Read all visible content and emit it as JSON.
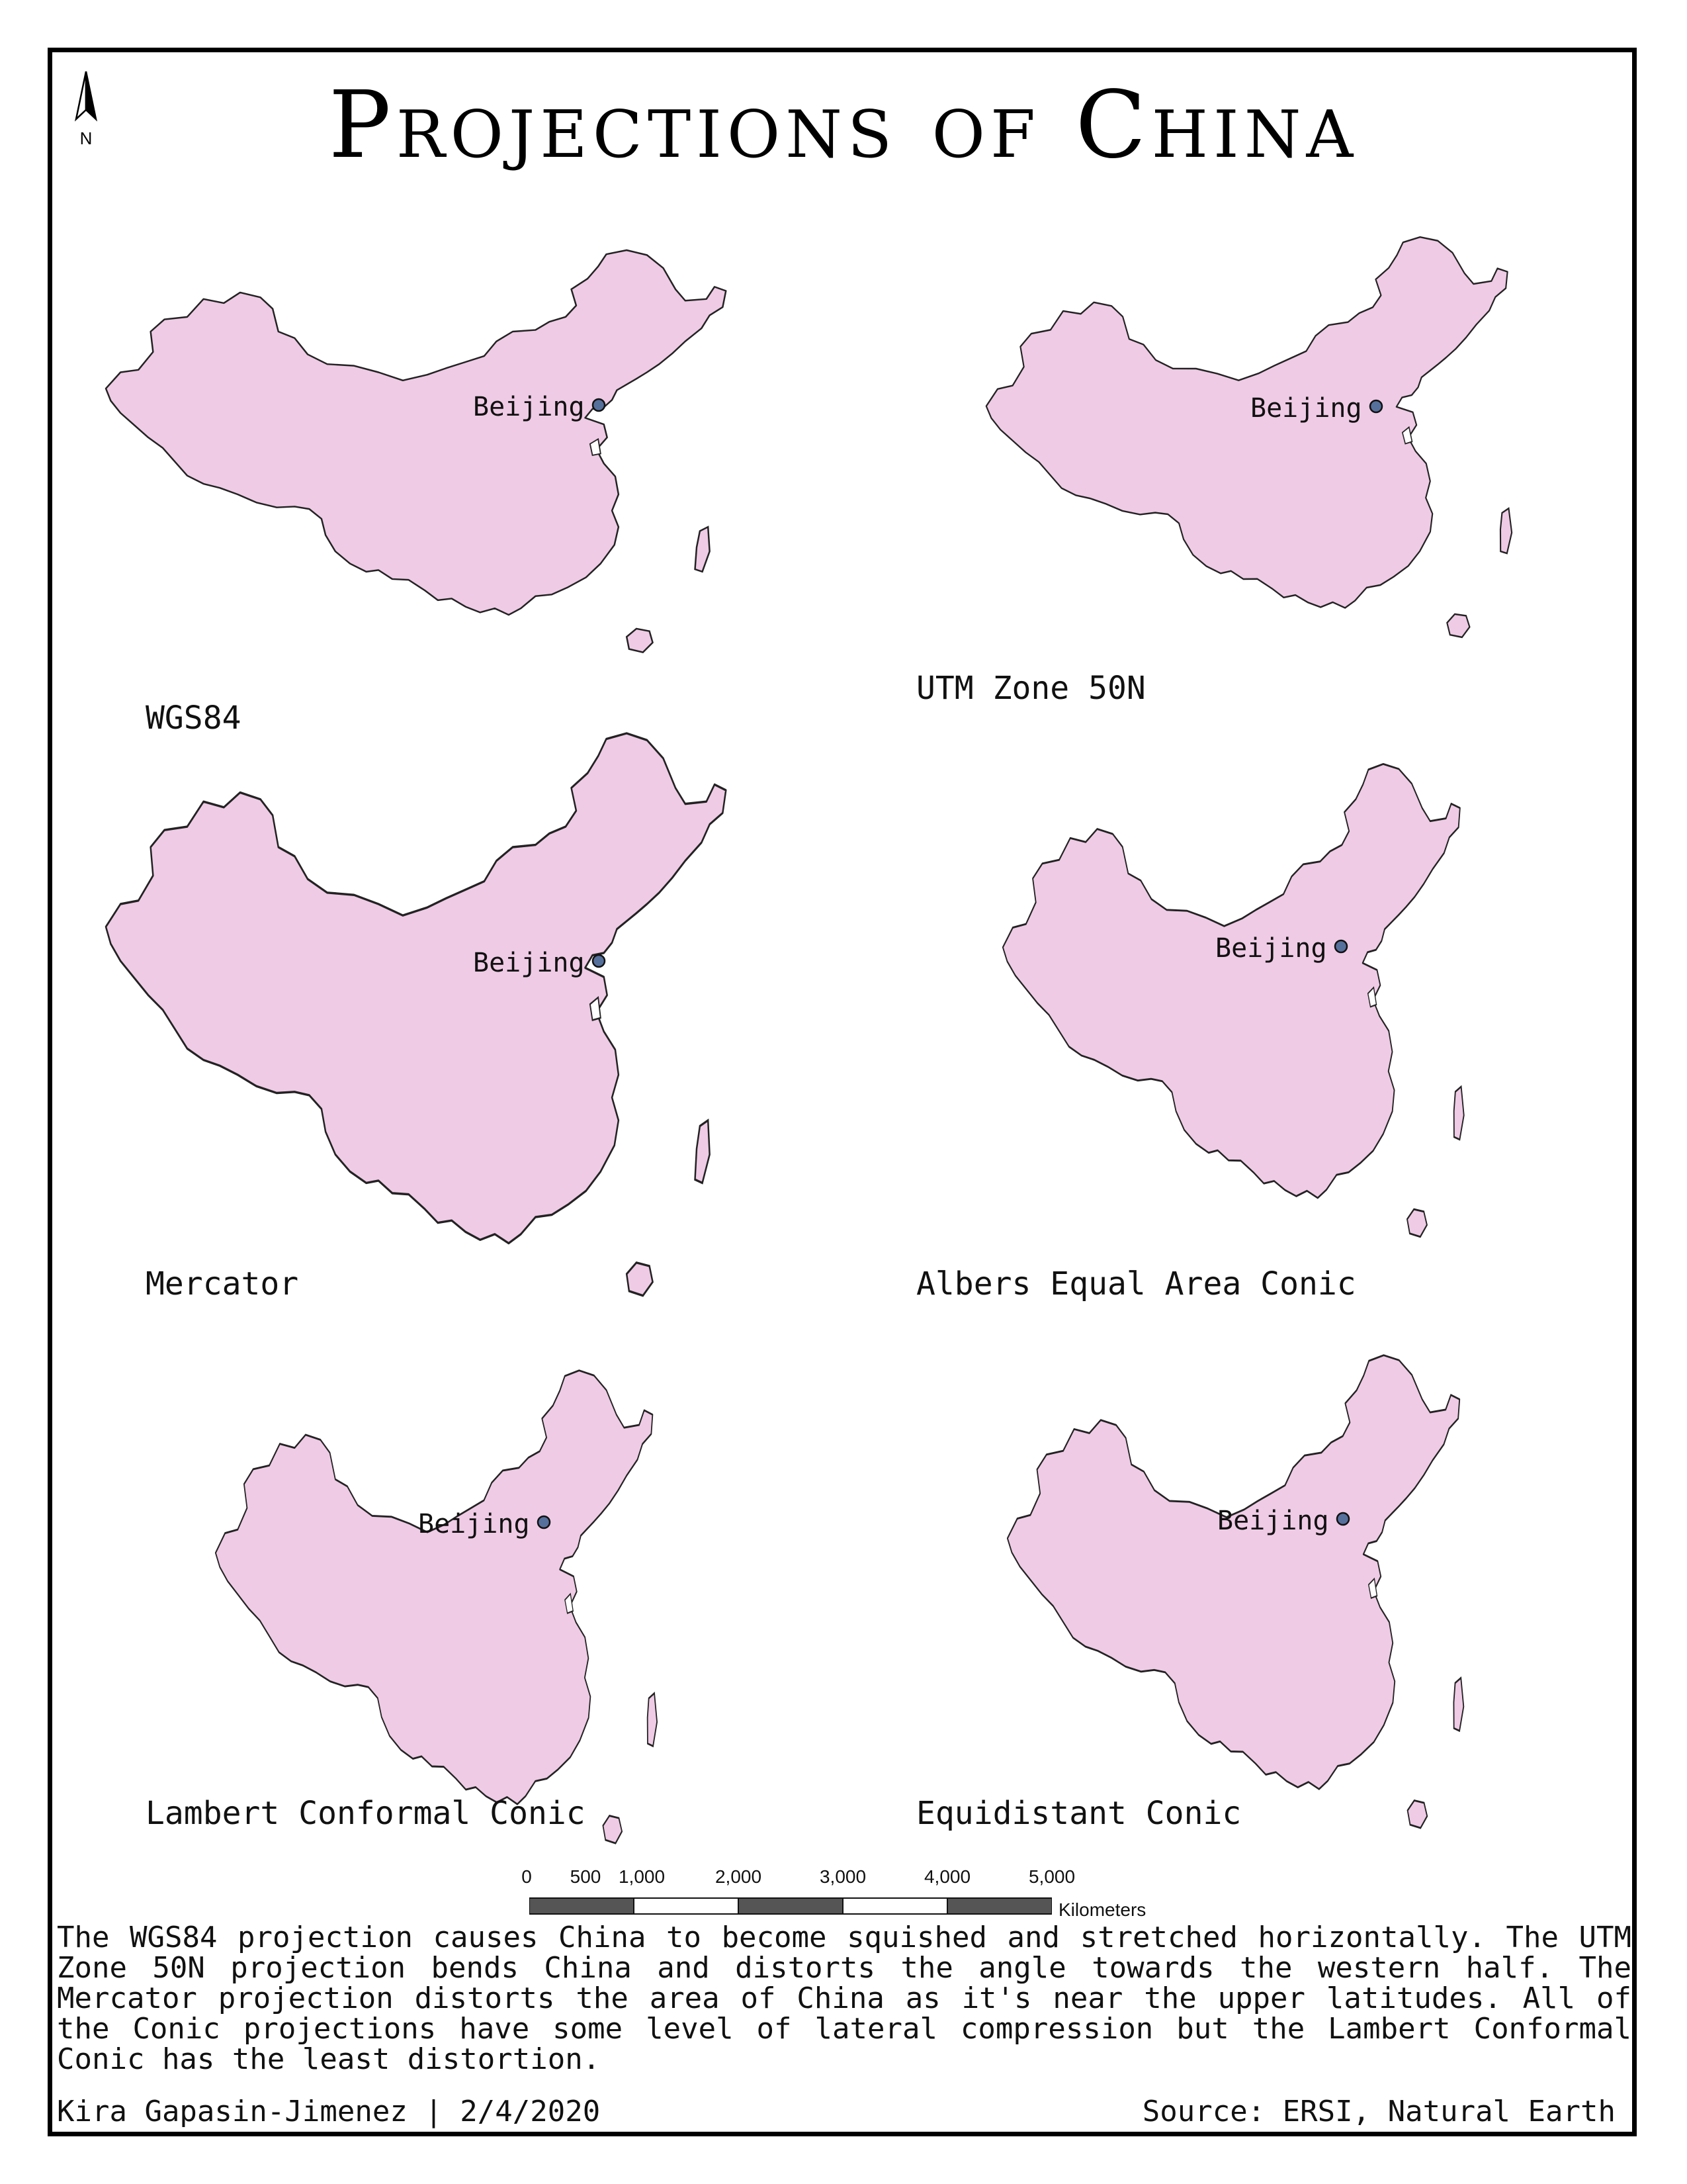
{
  "title": "Projections of China",
  "north_arrow": {
    "icon": "north-arrow-icon",
    "label": "N"
  },
  "colors": {
    "land_fill": "#efcbe5",
    "land_stroke": "#222222",
    "city_marker": "#56709c",
    "frame": "#000000"
  },
  "maps": [
    {
      "id": "wgs84",
      "label": "WGS84",
      "city": "Beijing"
    },
    {
      "id": "utm",
      "label": "UTM Zone 50N",
      "city": "Beijing"
    },
    {
      "id": "mercator",
      "label": "Mercator",
      "city": "Beijing"
    },
    {
      "id": "albers",
      "label": "Albers Equal Area Conic",
      "city": "Beijing"
    },
    {
      "id": "lambert",
      "label": "Lambert Conformal Conic",
      "city": "Beijing"
    },
    {
      "id": "equidistant",
      "label": "Equidistant Conic",
      "city": "Beijing"
    }
  ],
  "scale_bar": {
    "ticks": [
      "0",
      "500",
      "1,000",
      "2,000",
      "3,000",
      "4,000",
      "5,000"
    ],
    "tick_values": [
      0,
      500,
      1000,
      2000,
      3000,
      4000,
      5000
    ],
    "max": 5000,
    "units": "Kilometers"
  },
  "description": "The WGS84 projection causes China to become squished and stretched horizontally. The UTM Zone 50N projection bends China and distorts the angle towards the western half. The Mercator projection distorts the area of China as it's near the upper latitudes. All of the Conic projections have some level of lateral compression but the Lambert Conformal Conic has the least distortion.",
  "author": "Kira Gapasin-Jimenez | 2/4/2020",
  "source": "Source: ERSI, Natural Earth"
}
